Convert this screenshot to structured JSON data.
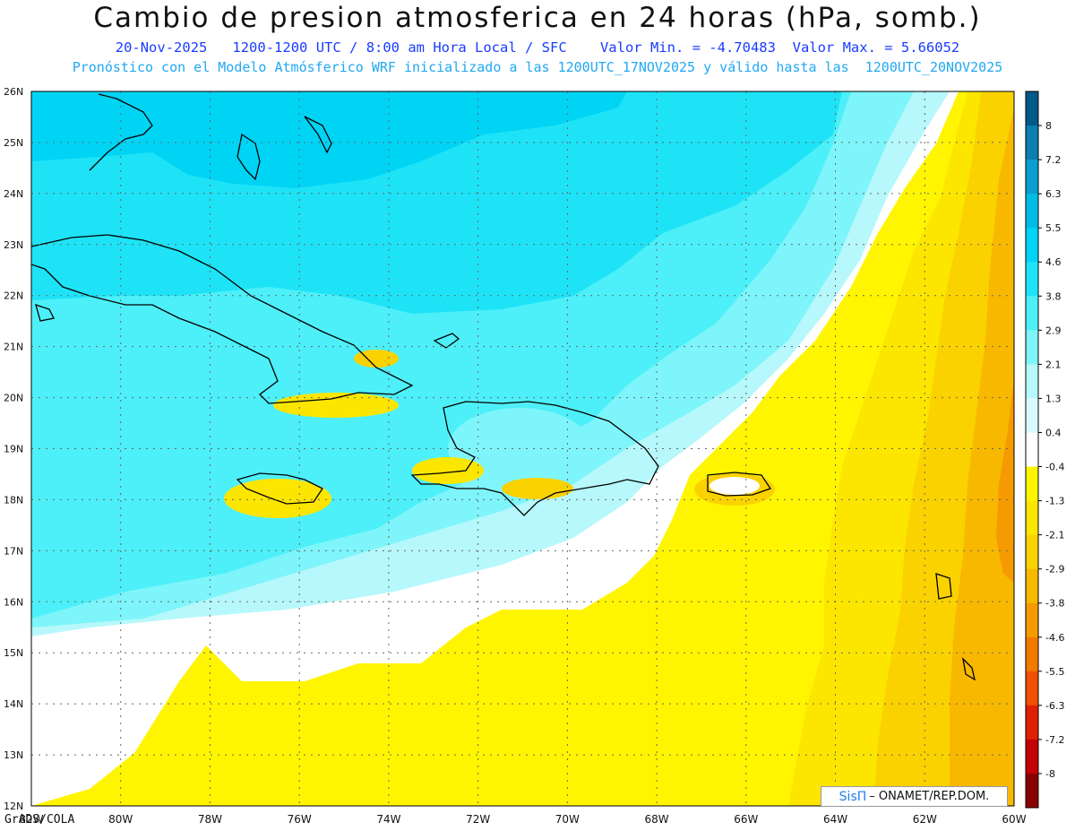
{
  "title": "Cambio de presion atmosferica en 24 horas (hPa, somb.)",
  "subtitle_line1": "20-Nov-2025   1200-1200 UTC / 8:00 am Hora Local / SFC    Valor Min. = -4.70483  Valor Max. = 5.66052",
  "subtitle_line2": "Pronóstico con el Modelo Atmósferico WRF inicializado a las 1200UTC_17NOV2025 y válido hasta las  1200UTC_20NOV2025",
  "credit": "GrADS/COLA",
  "logo": {
    "brand": "SisΠ",
    "text": "– ONAMET/REP.DOM."
  },
  "map": {
    "lon_range": [
      -82,
      -60
    ],
    "lat_range": [
      12,
      26
    ],
    "lon_ticks": [
      "82W",
      "80W",
      "78W",
      "76W",
      "74W",
      "72W",
      "70W",
      "68W",
      "66W",
      "64W",
      "62W",
      "60W"
    ],
    "lat_ticks": [
      "12N",
      "13N",
      "14N",
      "15N",
      "16N",
      "17N",
      "18N",
      "19N",
      "20N",
      "21N",
      "22N",
      "23N",
      "24N",
      "25N",
      "26N"
    ]
  },
  "colorbar": {
    "labels": [
      "8",
      "7.2",
      "6.3",
      "5.5",
      "4.6",
      "3.8",
      "2.9",
      "2.1",
      "1.3",
      "0.4",
      "-0.4",
      "-1.3",
      "-2.1",
      "-2.9",
      "-3.8",
      "-4.6",
      "-5.5",
      "-6.3",
      "-7.2",
      "-8"
    ],
    "colors": [
      "#005a87",
      "#0a7fb0",
      "#0a9fd0",
      "#00bde6",
      "#00d4f5",
      "#1ee3f7",
      "#4df0f8",
      "#7ef5fa",
      "#b6f8fb",
      "#d9fbfd",
      "#ffffff",
      "#fff500",
      "#fce600",
      "#fad200",
      "#f8b800",
      "#f59a00",
      "#f27a00",
      "#f05000",
      "#e02000",
      "#c40000",
      "#8a0000"
    ]
  }
}
